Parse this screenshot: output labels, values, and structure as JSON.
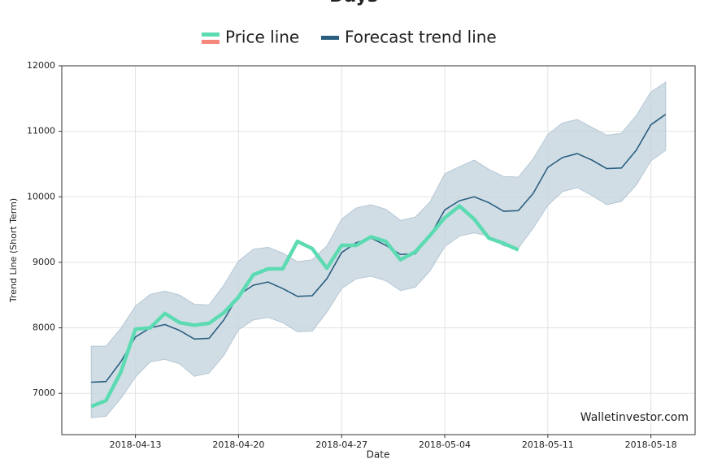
{
  "chart_data": {
    "type": "line",
    "title": "Days",
    "xlabel": "Date",
    "ylabel": "Trend Line (Short Term)",
    "watermark": "Walletinvestor.com",
    "x": [
      "2018-04-10",
      "2018-04-11",
      "2018-04-12",
      "2018-04-13",
      "2018-04-14",
      "2018-04-15",
      "2018-04-16",
      "2018-04-17",
      "2018-04-18",
      "2018-04-19",
      "2018-04-20",
      "2018-04-21",
      "2018-04-22",
      "2018-04-23",
      "2018-04-24",
      "2018-04-25",
      "2018-04-26",
      "2018-04-27",
      "2018-04-28",
      "2018-04-29",
      "2018-04-30",
      "2018-05-01",
      "2018-05-02",
      "2018-05-03",
      "2018-05-04",
      "2018-05-05",
      "2018-05-06",
      "2018-05-07",
      "2018-05-08",
      "2018-05-09",
      "2018-05-10",
      "2018-05-11",
      "2018-05-12",
      "2018-05-13",
      "2018-05-14",
      "2018-05-15",
      "2018-05-16",
      "2018-05-17",
      "2018-05-18",
      "2018-05-19"
    ],
    "series": [
      {
        "name": "Price line",
        "color": "#5cdbb2",
        "down_color": "#f4877a",
        "values": [
          6800,
          6890,
          7320,
          7980,
          8000,
          8220,
          8080,
          8040,
          8070,
          8230,
          8470,
          8810,
          8900,
          8900,
          9320,
          9210,
          8910,
          9260,
          9260,
          9390,
          9320,
          9040,
          9160,
          9410,
          9680,
          9860,
          9660,
          9370,
          9290,
          9190,
          null,
          null,
          null,
          null,
          null,
          null,
          null,
          null,
          null,
          null
        ]
      },
      {
        "name": "Forecast trend line",
        "color": "#2a5f80",
        "values": [
          7170,
          7180,
          7480,
          7860,
          8000,
          8050,
          7960,
          7830,
          7840,
          8120,
          8500,
          8650,
          8700,
          8600,
          8480,
          8490,
          8750,
          9150,
          9300,
          9370,
          9260,
          9120,
          9130,
          9400,
          9800,
          9940,
          10000,
          9910,
          9780,
          9790,
          10050,
          10450,
          10600,
          10660,
          10560,
          10430,
          10440,
          10710,
          11100,
          11260
        ]
      }
    ],
    "band": {
      "color": "#c5d4df",
      "upper": [
        7720,
        7720,
        7990,
        8330,
        8510,
        8560,
        8500,
        8360,
        8350,
        8650,
        9020,
        9200,
        9230,
        9140,
        9010,
        9040,
        9250,
        9660,
        9830,
        9880,
        9810,
        9640,
        9690,
        9920,
        10350,
        10460,
        10560,
        10420,
        10310,
        10300,
        10580,
        10950,
        11130,
        11180,
        11060,
        10940,
        10970,
        11240,
        11600,
        11750
      ],
      "lower": [
        6630,
        6650,
        6920,
        7250,
        7480,
        7520,
        7450,
        7260,
        7310,
        7580,
        7970,
        8120,
        8160,
        8080,
        7940,
        7950,
        8240,
        8600,
        8750,
        8790,
        8720,
        8570,
        8620,
        8870,
        9240,
        9400,
        9450,
        9400,
        9250,
        9220,
        9520,
        9870,
        10080,
        10140,
        10020,
        9880,
        9930,
        10180,
        10550,
        10710
      ]
    },
    "xlim": [
      "2018-04-08",
      "2018-05-21"
    ],
    "xticks": [
      "2018-04-13",
      "2018-04-20",
      "2018-04-27",
      "2018-05-04",
      "2018-05-11",
      "2018-05-18"
    ],
    "ylim": [
      6370,
      12000
    ],
    "yticks": [
      7000,
      8000,
      9000,
      10000,
      11000,
      12000
    ],
    "grid": true
  }
}
